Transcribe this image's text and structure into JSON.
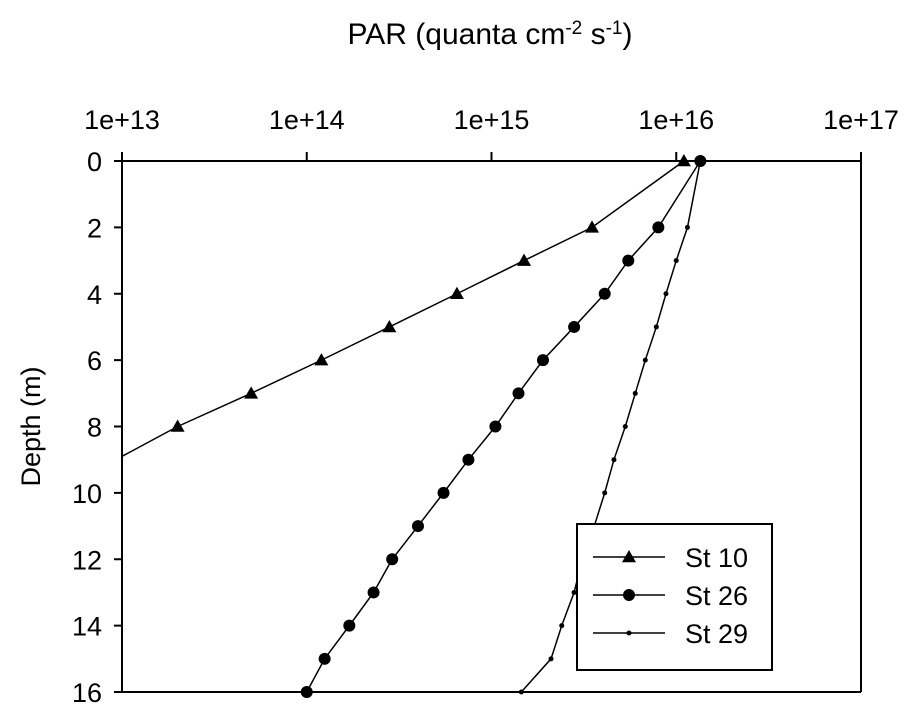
{
  "chart_data": {
    "type": "line",
    "title": "PAR (quanta cm-2 s-1)",
    "title_parts": {
      "pre": "PAR (quanta cm",
      "sup1": "-2",
      "mid": " s",
      "sup2": "-1",
      "post": ")"
    },
    "xlabel": "PAR (quanta cm-2 s-1)",
    "ylabel": "Depth (m)",
    "x_scale": "log",
    "x_axis_position": "top",
    "y_inverted": true,
    "xlim": [
      10000000000000.0,
      1e+17
    ],
    "ylim": [
      0,
      16
    ],
    "x_ticks": [
      10000000000000.0,
      100000000000000.0,
      1000000000000000.0,
      1e+16,
      1e+17
    ],
    "x_tick_labels": [
      "1e+13",
      "1e+14",
      "1e+15",
      "1e+16",
      "1e+17"
    ],
    "y_ticks": [
      0,
      2,
      4,
      6,
      8,
      10,
      12,
      14,
      16
    ],
    "y_tick_labels": [
      "0",
      "2",
      "4",
      "6",
      "8",
      "10",
      "12",
      "14",
      "16"
    ],
    "grid": false,
    "legend_position": "bottom-right",
    "series": [
      {
        "name": "St 10",
        "marker": "triangle",
        "points": [
          {
            "x": 1.1e+16,
            "y": 0
          },
          {
            "x": 3500000000000000.0,
            "y": 2
          },
          {
            "x": 1500000000000000.0,
            "y": 3
          },
          {
            "x": 650000000000000.0,
            "y": 4
          },
          {
            "x": 280000000000000.0,
            "y": 5
          },
          {
            "x": 120000000000000.0,
            "y": 6
          },
          {
            "x": 50000000000000.0,
            "y": 7
          },
          {
            "x": 20000000000000.0,
            "y": 8
          },
          {
            "x": 10000000000000.0,
            "y": 8.9
          }
        ]
      },
      {
        "name": "St 26",
        "marker": "circle",
        "points": [
          {
            "x": 1.35e+16,
            "y": 0
          },
          {
            "x": 8000000000000000.0,
            "y": 2
          },
          {
            "x": 5500000000000000.0,
            "y": 3
          },
          {
            "x": 4100000000000000.0,
            "y": 4
          },
          {
            "x": 2800000000000000.0,
            "y": 5
          },
          {
            "x": 1900000000000000.0,
            "y": 6
          },
          {
            "x": 1400000000000000.0,
            "y": 7
          },
          {
            "x": 1050000000000000.0,
            "y": 8
          },
          {
            "x": 750000000000000.0,
            "y": 9
          },
          {
            "x": 550000000000000.0,
            "y": 10
          },
          {
            "x": 400000000000000.0,
            "y": 11
          },
          {
            "x": 290000000000000.0,
            "y": 12
          },
          {
            "x": 230000000000000.0,
            "y": 13
          },
          {
            "x": 170000000000000.0,
            "y": 14
          },
          {
            "x": 125000000000000.0,
            "y": 15
          },
          {
            "x": 100000000000000.0,
            "y": 16
          }
        ]
      },
      {
        "name": "St 29",
        "marker": "small-dot",
        "points": [
          {
            "x": 1.35e+16,
            "y": 0
          },
          {
            "x": 1.15e+16,
            "y": 2
          },
          {
            "x": 1e+16,
            "y": 3
          },
          {
            "x": 8800000000000000.0,
            "y": 4
          },
          {
            "x": 7800000000000000.0,
            "y": 5
          },
          {
            "x": 6800000000000000.0,
            "y": 6
          },
          {
            "x": 6000000000000000.0,
            "y": 7
          },
          {
            "x": 5300000000000000.0,
            "y": 8
          },
          {
            "x": 4600000000000000.0,
            "y": 9
          },
          {
            "x": 4100000000000000.0,
            "y": 10
          },
          {
            "x": 3600000000000000.0,
            "y": 11
          },
          {
            "x": 3100000000000000.0,
            "y": 12
          },
          {
            "x": 2800000000000000.0,
            "y": 13
          },
          {
            "x": 2400000000000000.0,
            "y": 14
          },
          {
            "x": 2100000000000000.0,
            "y": 15
          },
          {
            "x": 1450000000000000.0,
            "y": 16
          }
        ]
      }
    ],
    "colors": {
      "line": "#000000",
      "background": "#ffffff"
    }
  }
}
